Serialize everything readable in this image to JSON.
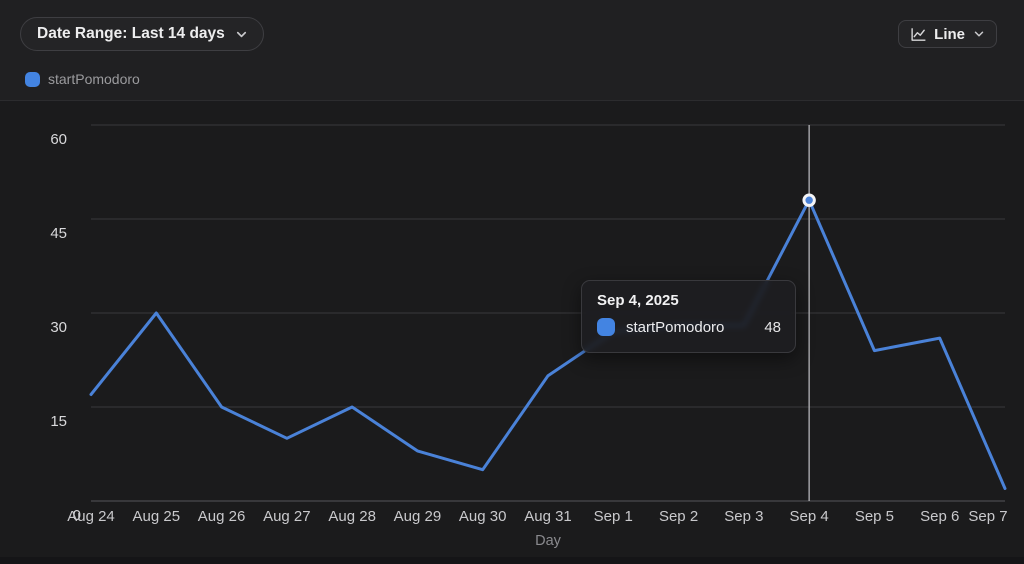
{
  "header": {
    "date_range_button": {
      "label": "Date Range: Last 14 days"
    },
    "chart_type_button": {
      "label": "Line",
      "icon": "line-chart"
    }
  },
  "legend": {
    "items": [
      {
        "label": "startPomodoro",
        "color": "#4384e2"
      }
    ]
  },
  "chart_data": {
    "type": "line",
    "x": [
      "Aug 24",
      "Aug 25",
      "Aug 26",
      "Aug 27",
      "Aug 28",
      "Aug 29",
      "Aug 30",
      "Aug 31",
      "Sep 1",
      "Sep 2",
      "Sep 3",
      "Sep 4",
      "Sep 5",
      "Sep 6",
      "Sep 7"
    ],
    "series": [
      {
        "name": "startPomodoro",
        "color": "#4a82d8",
        "values": [
          17,
          30,
          15,
          10,
          15,
          8,
          5,
          20,
          27,
          28,
          28,
          48,
          24,
          26,
          2
        ]
      }
    ],
    "xlabel": "Day",
    "ylabel": "startPomodoro",
    "ylim": [
      0,
      60
    ],
    "yticks": [
      0,
      15,
      30,
      45,
      60
    ],
    "grid": "horizontal",
    "legend_position": "top-left"
  },
  "highlight": {
    "index": 11,
    "x_label": "Sep 4",
    "value": 48
  },
  "tooltip": {
    "title": "Sep 4, 2025",
    "series": "startPomodoro",
    "value": "48",
    "color": "#4384e2"
  },
  "colors": {
    "line": "#4a82d8",
    "accent": "#4384e2",
    "grid": "#39393c",
    "axis": "#4a4a4e",
    "crosshair": "#aaaaae",
    "marker_ring": "#f5f5f7"
  }
}
